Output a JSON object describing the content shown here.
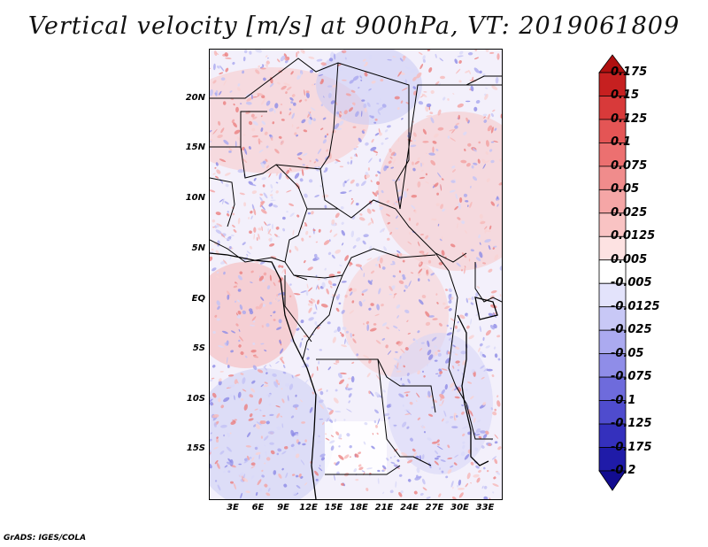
{
  "title": "Vertical velocity [m/s] at 900hPa, VT: 2019061809",
  "credit": "GrADS: IGES/COLA",
  "lat_labels": [
    "20N",
    "15N",
    "10N",
    "5N",
    "EQ",
    "5S",
    "10S",
    "15S"
  ],
  "lon_labels": [
    "3E",
    "6E",
    "9E",
    "12E",
    "15E",
    "18E",
    "21E",
    "24E",
    "27E",
    "30E",
    "33E"
  ],
  "colorbar": {
    "labels": [
      "0.175",
      "0.15",
      "0.125",
      "0.1",
      "0.075",
      "0.05",
      "0.025",
      "0.0125",
      "0.005",
      "-0.005",
      "-0.0125",
      "-0.025",
      "-0.05",
      "-0.075",
      "-0.1",
      "-0.125",
      "-0.175",
      "-0.2"
    ],
    "colors": [
      "#b01010",
      "#c62020",
      "#d83a3a",
      "#e45555",
      "#ec7070",
      "#f08c8c",
      "#f5a6a6",
      "#f9c3c3",
      "#fde2e2",
      "#ffffff",
      "#e3e3fb",
      "#c8c8f6",
      "#abaaf0",
      "#8f8de8",
      "#6e6bdc",
      "#4f4cce",
      "#3430bd",
      "#1f1ba8",
      "#120c90"
    ]
  }
}
